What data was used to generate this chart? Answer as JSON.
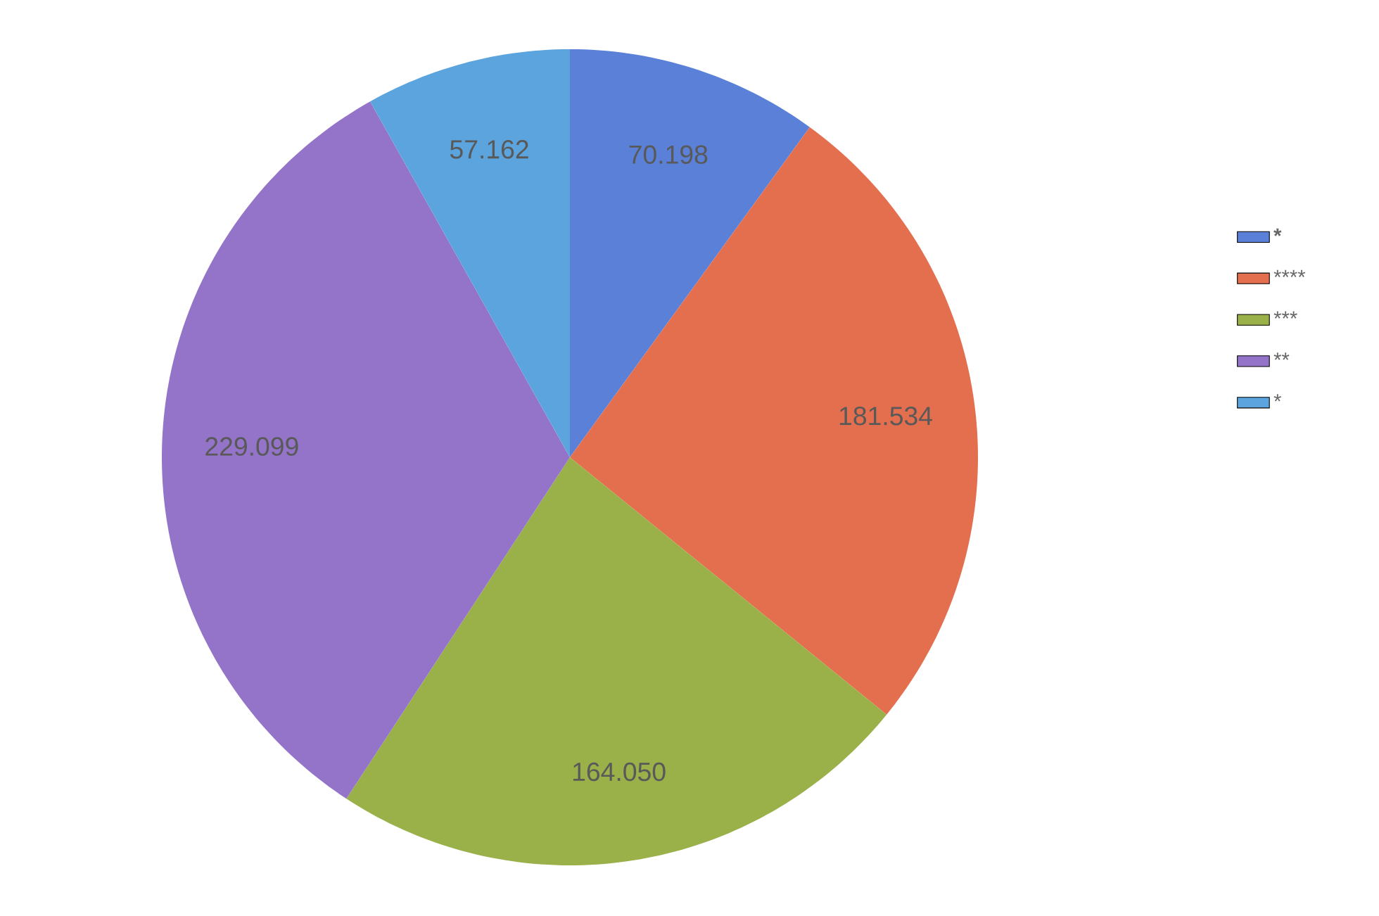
{
  "chart_data": {
    "type": "pie",
    "categories": [
      "*****",
      "****",
      "***",
      "**",
      "*"
    ],
    "values": [
      70.198,
      181.534,
      164.05,
      229.099,
      57.162
    ],
    "value_labels": [
      "70.198",
      "181.534",
      "164.050",
      "229.099",
      "57.162"
    ],
    "colors": [
      "#5a80d8",
      "#e46f4f",
      "#9ab049",
      "#9474c8",
      "#5ba4de"
    ],
    "legend": "right"
  }
}
